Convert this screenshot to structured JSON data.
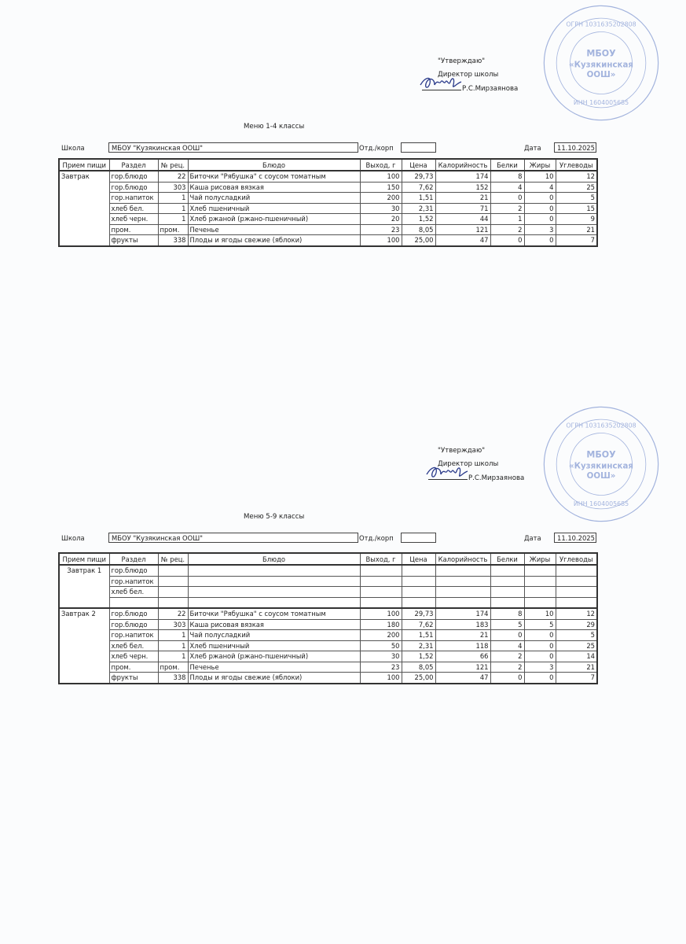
{
  "approval": {
    "approve": "\"Утверждаю\"",
    "position": "Директор школы",
    "name": "Р.С.Мирзаянова"
  },
  "stamp": {
    "line1": "МБОУ",
    "line2": "«Кузякинская",
    "line3": "ООШ»",
    "inn": "ИНН 1604005685",
    "ogrn": "ОГРН 1031635202808"
  },
  "labels": {
    "school": "Школа",
    "dept": "Отд./корп",
    "date": "Дата"
  },
  "school_name": "МБОУ \"Кузякинская ООШ\"",
  "date": "11.10.2025",
  "dept_value": "",
  "columns": [
    "Прием пищи",
    "Раздел",
    "№ рец.",
    "Блюдо",
    "Выход, г",
    "Цена",
    "Калорийность",
    "Белки",
    "Жиры",
    "Углеводы"
  ],
  "menus": [
    {
      "title": "Меню 1-4 классы",
      "groups": [
        {
          "meal": "Завтрак",
          "rows": [
            [
              "гор.блюдо",
              "22",
              "Биточки \"Рябушка\" с соусом томатным",
              "100",
              "29,73",
              "174",
              "8",
              "10",
              "12"
            ],
            [
              "гор.блюдо",
              "303",
              "Каша рисовая вязкая",
              "150",
              "7,62",
              "152",
              "4",
              "4",
              "25"
            ],
            [
              "гор.напиток",
              "1",
              "Чай полусладкий",
              "200",
              "1,51",
              "21",
              "0",
              "0",
              "5"
            ],
            [
              "хлеб бел.",
              "1",
              "Хлеб пшеничный",
              "30",
              "2,31",
              "71",
              "2",
              "0",
              "15"
            ],
            [
              "хлеб черн.",
              "1",
              "Хлеб ржаной (ржано-пшеничный)",
              "20",
              "1,52",
              "44",
              "1",
              "0",
              "9"
            ],
            [
              "пром.",
              "пром.",
              "Печенье",
              "23",
              "8,05",
              "121",
              "2",
              "3",
              "21"
            ],
            [
              "фрукты",
              "338",
              "Плоды и ягоды свежие (яблоки)",
              "100",
              "25,00",
              "47",
              "0",
              "0",
              "7"
            ]
          ]
        }
      ]
    },
    {
      "title": "Меню 5-9 классы",
      "groups": [
        {
          "meal": "Завтрак 1",
          "rows": [
            [
              "гор.блюдо",
              "",
              "",
              "",
              "",
              "",
              "",
              "",
              ""
            ],
            [
              "гор.напиток",
              "",
              "",
              "",
              "",
              "",
              "",
              "",
              ""
            ],
            [
              "хлеб бел.",
              "",
              "",
              "",
              "",
              "",
              "",
              "",
              ""
            ],
            [
              "",
              "",
              "",
              "",
              "",
              "",
              "",
              "",
              ""
            ]
          ]
        },
        {
          "meal": "Завтрак 2",
          "rows": [
            [
              "гор.блюдо",
              "22",
              "Биточки \"Рябушка\" с соусом томатным",
              "100",
              "29,73",
              "174",
              "8",
              "10",
              "12"
            ],
            [
              "гор.блюдо",
              "303",
              "Каша рисовая вязкая",
              "180",
              "7,62",
              "183",
              "5",
              "5",
              "29"
            ],
            [
              "гор.напиток",
              "1",
              "Чай полусладкий",
              "200",
              "1,51",
              "21",
              "0",
              "0",
              "5"
            ],
            [
              "хлеб бел.",
              "1",
              "Хлеб пшеничный",
              "50",
              "2,31",
              "118",
              "4",
              "0",
              "25"
            ],
            [
              "хлеб черн.",
              "1",
              "Хлеб ржаной (ржано-пшеничный)",
              "30",
              "1,52",
              "66",
              "2",
              "0",
              "14"
            ],
            [
              "пром.",
              "пром.",
              "Печенье",
              "23",
              "8,05",
              "121",
              "2",
              "3",
              "21"
            ],
            [
              "фрукты",
              "338",
              "Плоды и ягоды свежие (яблоки)",
              "100",
              "25,00",
              "47",
              "0",
              "0",
              "7"
            ]
          ]
        }
      ]
    }
  ]
}
